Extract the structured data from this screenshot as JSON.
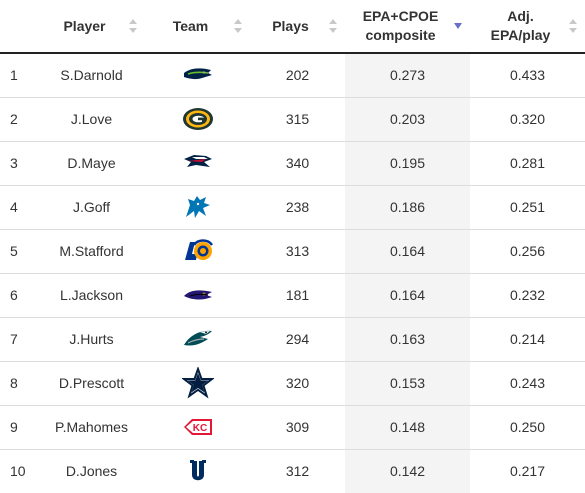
{
  "headers": {
    "rank": "",
    "player": "Player",
    "team": "Team",
    "plays": "Plays",
    "epa_line1": "EPA+CPOE",
    "epa_line2": "composite",
    "adj_line1": "Adj.",
    "adj_line2": "EPA/play"
  },
  "sort": {
    "active_column": "epa",
    "direction": "descending",
    "active_color": "#6b6fc7",
    "inactive_color": "#c8c8c8"
  },
  "rows": [
    {
      "rank": "1",
      "player": "S.Darnold",
      "team_logo": "seahawks-logo",
      "plays": "202",
      "epa": "0.273",
      "adj": "0.433"
    },
    {
      "rank": "2",
      "player": "J.Love",
      "team_logo": "packers-logo",
      "plays": "315",
      "epa": "0.203",
      "adj": "0.320"
    },
    {
      "rank": "3",
      "player": "D.Maye",
      "team_logo": "patriots-logo",
      "plays": "340",
      "epa": "0.195",
      "adj": "0.281"
    },
    {
      "rank": "4",
      "player": "J.Goff",
      "team_logo": "lions-logo",
      "plays": "238",
      "epa": "0.186",
      "adj": "0.251"
    },
    {
      "rank": "5",
      "player": "M.Stafford",
      "team_logo": "rams-logo",
      "plays": "313",
      "epa": "0.164",
      "adj": "0.256"
    },
    {
      "rank": "6",
      "player": "L.Jackson",
      "team_logo": "ravens-logo",
      "plays": "181",
      "epa": "0.164",
      "adj": "0.232"
    },
    {
      "rank": "7",
      "player": "J.Hurts",
      "team_logo": "eagles-logo",
      "plays": "294",
      "epa": "0.163",
      "adj": "0.214"
    },
    {
      "rank": "8",
      "player": "D.Prescott",
      "team_logo": "cowboys-logo",
      "plays": "320",
      "epa": "0.153",
      "adj": "0.243"
    },
    {
      "rank": "9",
      "player": "P.Mahomes",
      "team_logo": "chiefs-logo",
      "plays": "309",
      "epa": "0.148",
      "adj": "0.250"
    },
    {
      "rank": "10",
      "player": "D.Jones",
      "team_logo": "colts-logo",
      "plays": "312",
      "epa": "0.142",
      "adj": "0.217"
    }
  ]
}
